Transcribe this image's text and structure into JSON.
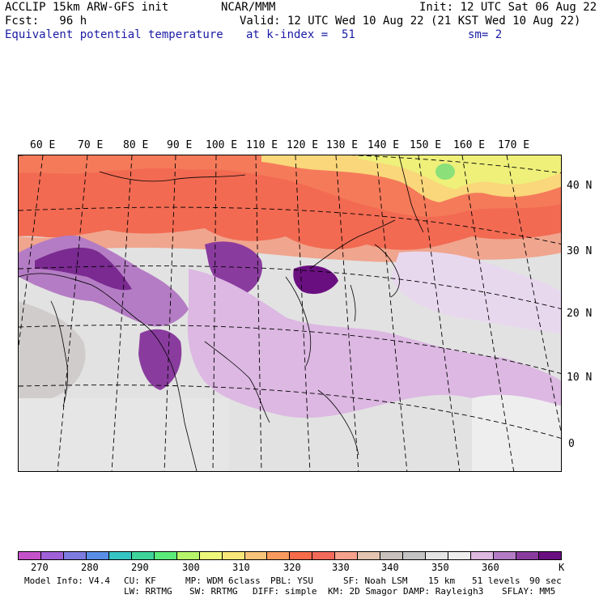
{
  "header": {
    "model": "ACCLIP 15km ARW-GFS init",
    "center": "NCAR/MMM",
    "init": "Init: 12 UTC Sat 06 Aug 22",
    "fcst": "Fcst:   96 h",
    "valid": "Valid: 12 UTC Wed 10 Aug 22 (21 KST Wed 10 Aug 22)",
    "field": "Equivalent potential temperature",
    "level": "at k-index =  51",
    "smooth": "sm= 2"
  },
  "map": {
    "lon_labels": [
      "60 E",
      "70 E",
      "80 E",
      "90 E",
      "100 E",
      "110 E",
      "120 E",
      "130 E",
      "140 E",
      "150 E",
      "160 E",
      "170 E"
    ],
    "lat_labels": [
      "40 N",
      "30 N",
      "20 N",
      "10 N",
      "0"
    ]
  },
  "colorbar": {
    "colors": [
      "#c452c9",
      "#a060d8",
      "#7d7ce0",
      "#5a8ee6",
      "#35c4c4",
      "#3ed49a",
      "#5aeb7a",
      "#b6f56a",
      "#eef87a",
      "#f9e67a",
      "#f7c47a",
      "#f89a5e",
      "#f76b4a",
      "#f26a5a",
      "#f5a28c",
      "#e3c4b0",
      "#c8c0ba",
      "#c4c4c4",
      "#e4e4e4",
      "#eeeeee",
      "#ddb8e0",
      "#b47cc4",
      "#8a3c9e",
      "#6a0f80"
    ],
    "tick_labels": [
      "270",
      "280",
      "290",
      "300",
      "310",
      "320",
      "330",
      "340",
      "350",
      "360"
    ],
    "unit": "K"
  },
  "footer": {
    "line1": [
      "Model Info: V4.4",
      "CU: KF",
      "MP: WDM 6class",
      "PBL: YSU",
      "SF: Noah LSM",
      "15 km",
      "51 levels",
      "90 sec"
    ],
    "line2": [
      "LW: RRTMG",
      "SW: RRTMG",
      "DIFF: simple",
      "KM: 2D Smagor",
      "DAMP: Rayleigh3",
      "SFLAY: MM5"
    ]
  }
}
